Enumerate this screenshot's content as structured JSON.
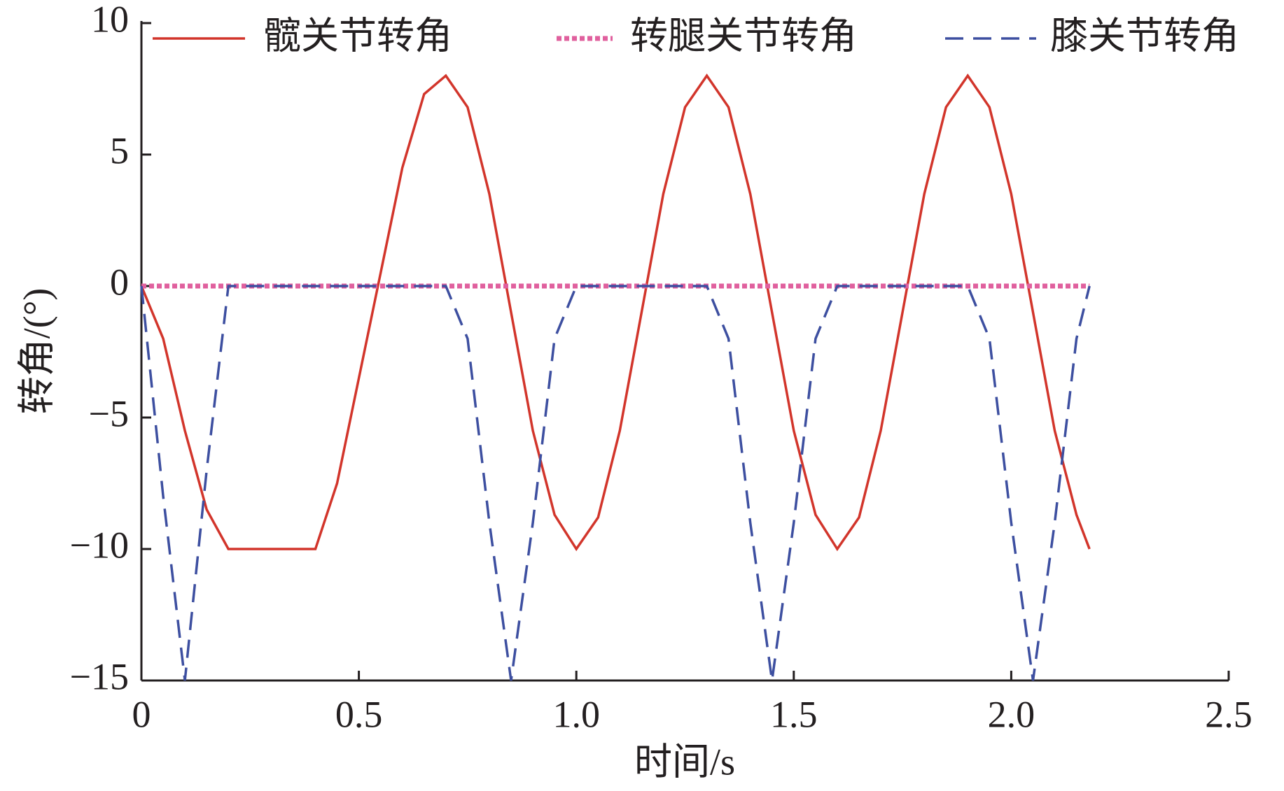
{
  "chart_data": {
    "type": "line",
    "x_label": "时间/s",
    "y_label": "转角/(°)",
    "x": [
      0,
      0.05,
      0.1,
      0.15,
      0.2,
      0.25,
      0.3,
      0.35,
      0.4,
      0.45,
      0.5,
      0.55,
      0.6,
      0.65,
      0.7,
      0.75,
      0.8,
      0.85,
      0.9,
      0.95,
      1.0,
      1.05,
      1.1,
      1.15,
      1.2,
      1.25,
      1.3,
      1.35,
      1.4,
      1.45,
      1.5,
      1.55,
      1.6,
      1.65,
      1.7,
      1.75,
      1.8,
      1.85,
      1.9,
      1.95,
      2.0,
      2.05,
      2.1,
      2.15,
      2.18
    ],
    "series": [
      {
        "name": "髋关节转角",
        "color": "#d2352b",
        "dash": "solid",
        "values": [
          0,
          -2,
          -5.5,
          -8.5,
          -10,
          -10,
          -10,
          -10,
          -10,
          -7.5,
          -3.5,
          0.5,
          4.5,
          7.3,
          8,
          6.8,
          3.5,
          -1,
          -5.5,
          -8.7,
          -10,
          -8.8,
          -5.5,
          -1,
          3.5,
          6.8,
          8,
          6.8,
          3.5,
          -1,
          -5.5,
          -8.7,
          -10,
          -8.8,
          -5.5,
          -1,
          3.5,
          6.8,
          8,
          6.8,
          3.5,
          -1,
          -5.5,
          -8.7,
          -10
        ]
      },
      {
        "name": "转腿关节转角",
        "color": "#e0609e",
        "dash": "dotted",
        "values": [
          0,
          0,
          0,
          0,
          0,
          0,
          0,
          0,
          0,
          0,
          0,
          0,
          0,
          0,
          0,
          0,
          0,
          0,
          0,
          0,
          0,
          0,
          0,
          0,
          0,
          0,
          0,
          0,
          0,
          0,
          0,
          0,
          0,
          0,
          0,
          0,
          0,
          0,
          0,
          0,
          0,
          0,
          0,
          0,
          0
        ]
      },
      {
        "name": "膝关节转角",
        "color": "#3d4fa0",
        "dash": "dashed",
        "values": [
          0,
          -8,
          -15,
          -7,
          0,
          0,
          0,
          0,
          0,
          0,
          0,
          0,
          0,
          0,
          0,
          -2,
          -9,
          -15,
          -9,
          -2,
          0,
          0,
          0,
          0,
          0,
          0,
          0,
          -2,
          -9,
          -15,
          -9,
          -2,
          0,
          0,
          0,
          0,
          0,
          0,
          0,
          -2,
          -9,
          -15,
          -9,
          -2,
          0
        ]
      }
    ],
    "xlim": [
      0,
      2.5
    ],
    "xticks": [
      0,
      0.5,
      {
        "value": 1,
        "label": "1.0"
      },
      1.5,
      {
        "value": 2,
        "label": "2.0"
      },
      2.5
    ],
    "ylim": [
      -15,
      10
    ],
    "yticks": [
      10,
      5,
      0,
      {
        "value": -5,
        "label": "−5"
      },
      {
        "value": -10,
        "label": "−10"
      },
      {
        "value": -15,
        "label": "−15"
      }
    ],
    "legend": "top",
    "grid": false
  }
}
